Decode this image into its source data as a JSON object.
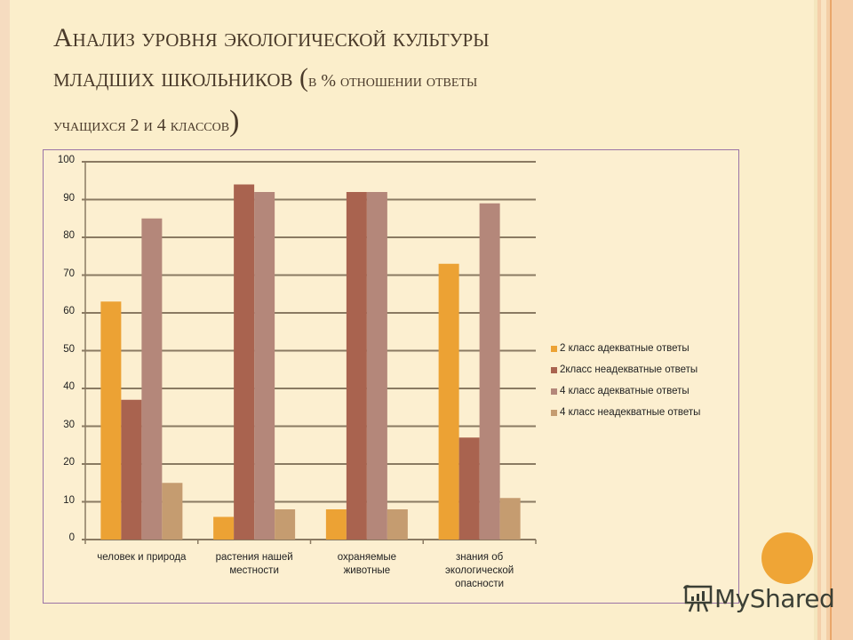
{
  "title": {
    "line1": "Анализ уровня экологической культуры",
    "line2": "младших школьников (",
    "line2_small": "в % отношении ответы",
    "line3": "учащихся 2 и 4 классов",
    "line3_close": ")"
  },
  "chart_data": {
    "type": "bar",
    "title": "Анализ уровня экологической культуры младших школьников (в % отношении ответы учащихся 2 и 4 классов)",
    "xlabel": "",
    "ylabel": "",
    "ylim": [
      0,
      100
    ],
    "yticks": [
      0,
      10,
      20,
      30,
      40,
      50,
      60,
      70,
      80,
      90,
      100
    ],
    "grid": true,
    "legend_position": "right",
    "categories": [
      "человек и природа",
      "растения нашей местности",
      "охраняемые животные",
      "знания об экологической опасности"
    ],
    "categories_display": [
      [
        "человек и природа"
      ],
      [
        "растения нашей",
        "местности"
      ],
      [
        "охраняемые",
        "животные"
      ],
      [
        "знания об",
        "экологической",
        "опасности"
      ]
    ],
    "series": [
      {
        "name": "2 класс адекватные ответы",
        "color": "#eca234",
        "values": [
          63,
          6,
          8,
          73
        ]
      },
      {
        "name": "2класс неадекватные ответы",
        "color": "#a9634f",
        "values": [
          37,
          94,
          92,
          27
        ]
      },
      {
        "name": "4 класс адекватные ответы",
        "color": "#b4877a",
        "values": [
          85,
          92,
          92,
          89
        ]
      },
      {
        "name": "4 класс неадекватные ответы",
        "color": "#c59c70",
        "values": [
          15,
          8,
          8,
          11
        ]
      }
    ]
  },
  "watermark": {
    "label": "MyShared",
    "icon": "presentation-chart-icon"
  },
  "colors": {
    "background": "#fbeecb",
    "accent_circle": "#efa536",
    "chart_border": "#9a74a6",
    "gridline": "#8a7a62"
  }
}
